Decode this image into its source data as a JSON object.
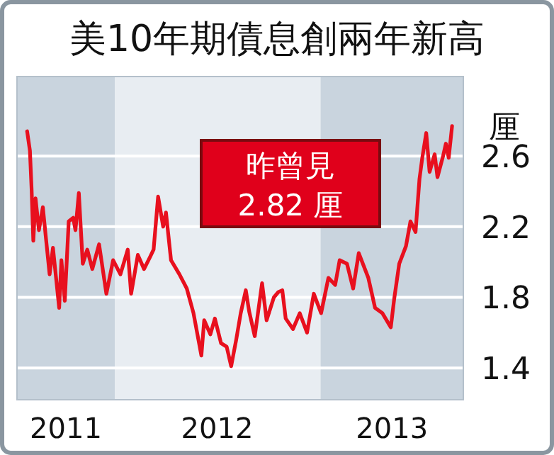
{
  "chart_data": {
    "type": "line",
    "title": "美10年期債息創兩年新高",
    "ylabel": "厘",
    "x": [
      "2011-07-29",
      "2011-08-03",
      "2011-08-06",
      "2011-08-09",
      "2011-08-13",
      "2011-08-19",
      "2011-08-26",
      "2011-08-31",
      "2011-09-07",
      "2011-09-13",
      "2011-09-24",
      "2011-09-28",
      "2011-10-04",
      "2011-10-11",
      "2011-10-19",
      "2011-10-23",
      "2011-10-29",
      "2011-11-05",
      "2011-11-13",
      "2011-11-22",
      "2011-12-04",
      "2011-12-17",
      "2011-12-29",
      "2012-01-11",
      "2012-01-24",
      "2012-01-30",
      "2012-02-11",
      "2012-02-22",
      "2012-03-04",
      "2012-03-10",
      "2012-03-18",
      "2012-03-27",
      "2012-04-01",
      "2012-04-10",
      "2012-04-25",
      "2012-05-08",
      "2012-05-20",
      "2012-06-03",
      "2012-06-08",
      "2012-06-19",
      "2012-06-27",
      "2012-07-08",
      "2012-07-18",
      "2012-07-26",
      "2012-08-04",
      "2012-08-12",
      "2012-08-21",
      "2012-08-27",
      "2012-09-06",
      "2012-09-19",
      "2012-09-27",
      "2012-10-10",
      "2012-10-18",
      "2012-10-25",
      "2012-10-31",
      "2012-11-13",
      "2012-11-25",
      "2012-12-08",
      "2012-12-20",
      "2013-01-02",
      "2013-01-15",
      "2013-01-27",
      "2013-02-04",
      "2013-02-17",
      "2013-02-28",
      "2013-03-10",
      "2013-03-27",
      "2013-04-08",
      "2013-04-21",
      "2013-05-06",
      "2013-05-12",
      "2013-05-21",
      "2013-06-02",
      "2013-06-10",
      "2013-06-19",
      "2013-06-26",
      "2013-07-01",
      "2013-07-08",
      "2013-07-14",
      "2013-07-23",
      "2013-07-28",
      "2013-08-07",
      "2013-08-12",
      "2013-08-17",
      "2013-08-23"
    ],
    "series": [
      {
        "color": "#e8101e",
        "values": [
          2.74,
          2.63,
          2.41,
          2.12,
          2.36,
          2.18,
          2.31,
          2.15,
          1.93,
          2.08,
          1.74,
          2.01,
          1.78,
          2.23,
          2.25,
          2.18,
          2.39,
          1.99,
          2.07,
          1.96,
          2.1,
          1.82,
          2.01,
          1.93,
          2.07,
          1.82,
          2.04,
          1.96,
          2.03,
          2.07,
          2.37,
          2.2,
          2.28,
          2.01,
          1.93,
          1.85,
          1.71,
          1.47,
          1.67,
          1.59,
          1.68,
          1.54,
          1.52,
          1.41,
          1.56,
          1.71,
          1.84,
          1.72,
          1.58,
          1.88,
          1.67,
          1.8,
          1.83,
          1.84,
          1.68,
          1.62,
          1.71,
          1.6,
          1.82,
          1.71,
          1.91,
          1.87,
          2.01,
          1.99,
          1.85,
          2.05,
          1.91,
          1.74,
          1.71,
          1.63,
          1.79,
          1.99,
          2.09,
          2.23,
          2.17,
          2.47,
          2.59,
          2.73,
          2.51,
          2.61,
          2.48,
          2.6,
          2.67,
          2.59,
          2.77
        ]
      }
    ],
    "xlim": [
      "2011-07-11",
      "2013-09-12"
    ],
    "xticks": [
      {
        "value": "2011-10-06",
        "label": "2011"
      },
      {
        "value": "2012-07-01",
        "label": "2012"
      },
      {
        "value": "2013-05-08",
        "label": "2013"
      }
    ],
    "ylim": [
      1.22,
      3.05
    ],
    "yticks": [
      1.4,
      1.8,
      2.2,
      2.6
    ],
    "grid": "y",
    "bands": [
      {
        "axis": "x",
        "from": "2011-07-11",
        "to": "2012-01-01",
        "color": "#c9d4de"
      },
      {
        "axis": "x",
        "from": "2012-01-01",
        "to": "2013-01-01",
        "color": "#e8edf2"
      },
      {
        "axis": "x",
        "from": "2013-01-01",
        "to": "2013-09-12",
        "color": "#c9d4de"
      }
    ],
    "annotations": [
      "昨曾見\n2.82 厘"
    ]
  }
}
